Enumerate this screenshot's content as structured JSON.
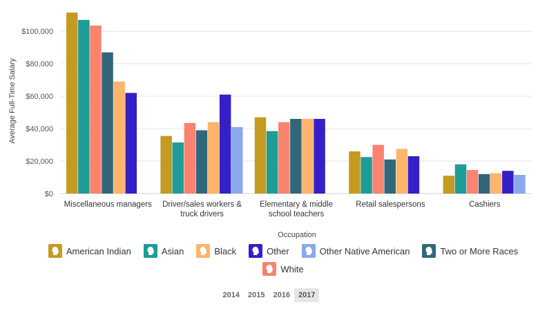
{
  "chart_data": {
    "type": "bar",
    "xlabel": "Occupation",
    "ylabel": "Average Full-Time Salary",
    "ylim": [
      0,
      115000
    ],
    "yticks": [
      0,
      20000,
      40000,
      60000,
      80000,
      100000
    ],
    "ytick_labels": [
      "$0",
      "$20,000",
      "$40,000",
      "$60,000",
      "$80,000",
      "$100,000"
    ],
    "grid": true,
    "categories": [
      [
        "Miscellaneous managers"
      ],
      [
        "Driver/sales workers &",
        "truck drivers"
      ],
      [
        "Elementary & middle",
        "school teachers"
      ],
      [
        "Retail salespersons"
      ],
      [
        "Cashiers"
      ]
    ],
    "series": [
      {
        "name": "American Indian",
        "color": "#c49a20",
        "values": [
          111500,
          35500,
          47000,
          26000,
          11000
        ]
      },
      {
        "name": "Asian",
        "color": "#1f9c95",
        "values": [
          107000,
          31500,
          38500,
          22500,
          18000
        ]
      },
      {
        "name": "White",
        "color": "#fa8370",
        "values": [
          103500,
          43500,
          44000,
          30000,
          14500
        ]
      },
      {
        "name": "Two or More Races",
        "color": "#326779",
        "values": [
          87000,
          39000,
          46000,
          21000,
          12000
        ]
      },
      {
        "name": "Black",
        "color": "#fdb46b",
        "values": [
          69000,
          44000,
          46000,
          27500,
          12500
        ]
      },
      {
        "name": "Other",
        "color": "#3420c6",
        "values": [
          62000,
          61000,
          46000,
          23000,
          14000
        ]
      },
      {
        "name": "Other Native American",
        "color": "#8aa9ec",
        "values": [
          null,
          41000,
          null,
          null,
          11500
        ]
      }
    ],
    "legend_placement": "bottom"
  },
  "legend": [
    {
      "label": "American Indian",
      "color": "#c49a20"
    },
    {
      "label": "Asian",
      "color": "#1f9c95"
    },
    {
      "label": "Black",
      "color": "#fdb46b"
    },
    {
      "label": "Other",
      "color": "#3420c6"
    },
    {
      "label": "Other Native American",
      "color": "#8aa9ec"
    },
    {
      "label": "Two or More Races",
      "color": "#326779"
    },
    {
      "label": "White",
      "color": "#fa8370"
    }
  ],
  "years": {
    "items": [
      "2014",
      "2015",
      "2016",
      "2017"
    ],
    "selected": "2017"
  }
}
